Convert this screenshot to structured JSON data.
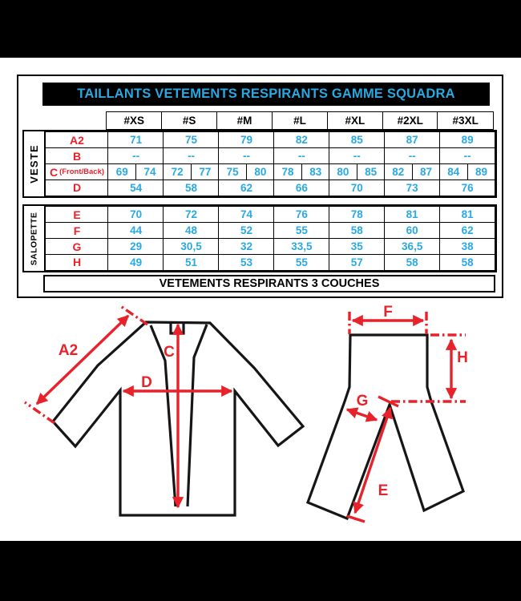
{
  "colors": {
    "accent_cyan": "#29A9E2",
    "accent_red": "#E8222A",
    "letterbox_black": "#000000",
    "line_black": "#161616",
    "background": "#FFFFFF"
  },
  "table": {
    "title": "TAILLANTS VETEMENTS RESPIRANTS GAMME SQUADRA",
    "size_columns": [
      "#XS",
      "#S",
      "#M",
      "#L",
      "#XL",
      "#2XL",
      "#3XL"
    ],
    "groups": [
      {
        "label": "VESTE",
        "rows": [
          {
            "label": "A2",
            "suffix": "",
            "values": [
              "71",
              "75",
              "79",
              "82",
              "85",
              "87",
              "89"
            ]
          },
          {
            "label": "B",
            "suffix": "",
            "values": [
              "--",
              "--",
              "--",
              "--",
              "--",
              "--",
              "--"
            ]
          },
          {
            "label": "C",
            "suffix": "(Front/Back)",
            "split_values": [
              [
                "69",
                "74"
              ],
              [
                "72",
                "77"
              ],
              [
                "75",
                "80"
              ],
              [
                "78",
                "83"
              ],
              [
                "80",
                "85"
              ],
              [
                "82",
                "87"
              ],
              [
                "84",
                "89"
              ]
            ]
          },
          {
            "label": "D",
            "suffix": "",
            "values": [
              "54",
              "58",
              "62",
              "66",
              "70",
              "73",
              "76"
            ]
          }
        ]
      },
      {
        "label": "SALOPETTE",
        "rows": [
          {
            "label": "E",
            "suffix": "",
            "values": [
              "70",
              "72",
              "74",
              "76",
              "78",
              "81",
              "81"
            ]
          },
          {
            "label": "F",
            "suffix": "",
            "values": [
              "44",
              "48",
              "52",
              "55",
              "58",
              "60",
              "62"
            ]
          },
          {
            "label": "G",
            "suffix": "",
            "values": [
              "29",
              "30,5",
              "32",
              "33,5",
              "35",
              "36,5",
              "38"
            ]
          },
          {
            "label": "H",
            "suffix": "",
            "values": [
              "49",
              "51",
              "53",
              "55",
              "57",
              "58",
              "58"
            ]
          }
        ]
      }
    ],
    "footer": "VETEMENTS RESPIRANTS 3 COUCHES"
  },
  "diagram": {
    "jacket_labels": {
      "a2": "A2",
      "c": "C",
      "d": "D"
    },
    "pants_labels": {
      "e": "E",
      "f": "F",
      "g": "G",
      "h": "H"
    }
  }
}
